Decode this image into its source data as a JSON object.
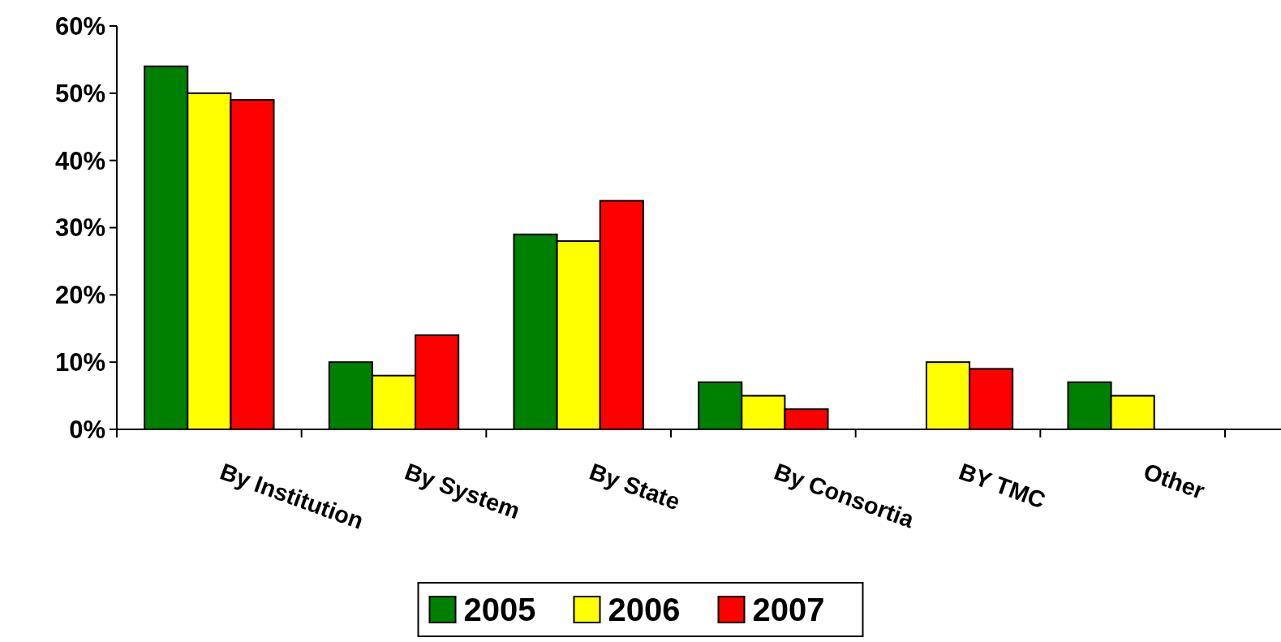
{
  "chart_data": {
    "type": "bar",
    "categories": [
      "By Institution",
      "By System",
      "By State",
      "By Consortia",
      "BY TMC",
      "Other"
    ],
    "series": [
      {
        "name": "2005",
        "color": "#008000",
        "values": [
          54,
          10,
          29,
          7,
          null,
          7
        ]
      },
      {
        "name": "2006",
        "color": "#ffff00",
        "values": [
          50,
          8,
          28,
          5,
          10,
          5
        ]
      },
      {
        "name": "2007",
        "color": "#ff0000",
        "values": [
          49,
          14,
          34,
          3,
          9,
          null
        ]
      }
    ],
    "ylim": [
      0,
      60
    ],
    "yticks": [
      {
        "value": 0,
        "label": "0%"
      },
      {
        "value": 10,
        "label": "10%"
      },
      {
        "value": 20,
        "label": "20%"
      },
      {
        "value": 30,
        "label": "30%"
      },
      {
        "value": 40,
        "label": "40%"
      },
      {
        "value": 50,
        "label": "50%"
      },
      {
        "value": 60,
        "label": "60%"
      }
    ],
    "grid": false,
    "legend": "bottom"
  }
}
